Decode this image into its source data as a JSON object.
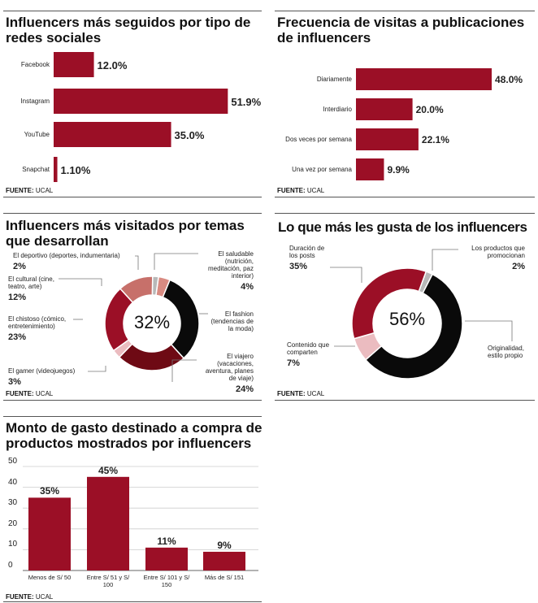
{
  "source_label": "FUENTE:",
  "source_value": "UCAL",
  "colors": {
    "primary": "#9b0f26",
    "black": "#0a0a0a",
    "dark_red": "#6e0a14",
    "salmon": "#c7706a",
    "light_salmon": "#d98b82",
    "light_pink": "#ebbcc0",
    "grey": "#b8b8b8"
  },
  "chart_data": [
    {
      "type": "bar",
      "orientation": "horizontal",
      "title": "Influencers más seguidos por tipo de redes sociales",
      "categories": [
        "Facebook",
        "Instagram",
        "YouTube",
        "Snapchat"
      ],
      "values": [
        12.0,
        51.9,
        35.0,
        1.1
      ],
      "data_labels": [
        "12.0%",
        "51.9%",
        "35.0%",
        "1.10%"
      ]
    },
    {
      "type": "bar",
      "orientation": "horizontal",
      "title": "Frecuencia de visitas a publicaciones de influencers",
      "categories": [
        "Diariamente",
        "Interdiario",
        "Dos veces por semana",
        "Una vez por semana"
      ],
      "values": [
        48.0,
        20.0,
        22.1,
        9.9
      ],
      "data_labels": [
        "48.0%",
        "20.0%",
        "22.1%",
        "9.9%"
      ]
    },
    {
      "type": "pie",
      "donut": true,
      "title": "Influencers más visitados por temas que desarrollan",
      "center_label": "32%",
      "slices": [
        {
          "label": "El saludable (nutrición, meditación, paz interior)",
          "value": 4,
          "pct": "4%",
          "color": "#d98b82"
        },
        {
          "label": "El fashion (tendencias de la moda)",
          "value": 32,
          "pct": "",
          "color": "#0a0a0a"
        },
        {
          "label": "El viajero (vacaciones, aventura, planes de viaje)",
          "value": 24,
          "pct": "24%",
          "color": "#6e0a14"
        },
        {
          "label": "El gamer (videojuegos)",
          "value": 3,
          "pct": "3%",
          "color": "#ebbcc0"
        },
        {
          "label": "El chistoso (cómico, entretenimiento)",
          "value": 23,
          "pct": "23%",
          "color": "#9b0f26"
        },
        {
          "label": "El cultural (cine, teatro, arte)",
          "value": 12,
          "pct": "12%",
          "color": "#c7706a"
        },
        {
          "label": "El deportivo (deportes, indumentaria)",
          "value": 2,
          "pct": "2%",
          "color": "#b8b8b8"
        }
      ]
    },
    {
      "type": "pie",
      "donut": true,
      "title": "Lo que más les gusta de los influencers",
      "center_label": "56%",
      "slices": [
        {
          "label": "Los productos que promocionan",
          "value": 2,
          "pct": "2%",
          "color": "#b8b8b8"
        },
        {
          "label": "Originalidad, estilo propio",
          "value": 56,
          "pct": "",
          "color": "#0a0a0a"
        },
        {
          "label": "Contenido que comparten",
          "value": 7,
          "pct": "7%",
          "color": "#ebbcc0"
        },
        {
          "label": "Duración de los posts",
          "value": 35,
          "pct": "35%",
          "color": "#9b0f26"
        }
      ]
    },
    {
      "type": "bar",
      "title": "Monto de gasto destinado a compra de productos  mostrados por influencers",
      "categories": [
        "Menos de S/ 50",
        "Entre S/ 51 y S/ 100",
        "Entre S/ 101 y S/ 150",
        "Más de S/ 151"
      ],
      "values": [
        35,
        45,
        11,
        9
      ],
      "data_labels": [
        "35%",
        "45%",
        "11%",
        "9%"
      ],
      "ylim": [
        0,
        50
      ],
      "yticks": [
        "0",
        "10",
        "20",
        "30",
        "40",
        "50"
      ],
      "grid": true
    }
  ]
}
